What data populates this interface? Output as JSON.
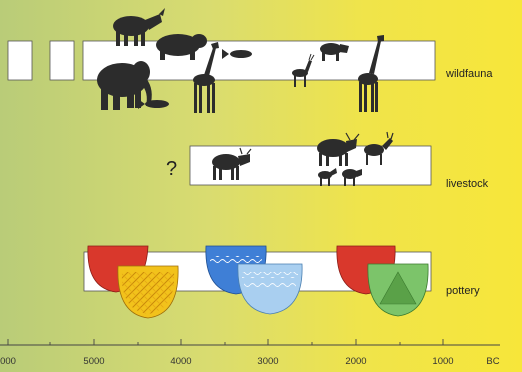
{
  "rows": {
    "wildfauna": {
      "label": "wildfauna"
    },
    "livestock": {
      "label": "livestock",
      "uncertain_mark": "?"
    },
    "pottery": {
      "label": "pottery"
    }
  },
  "axis": {
    "ticks": [
      "000",
      "5000",
      "4000",
      "3000",
      "2000",
      "1000",
      "BC"
    ]
  },
  "icons": {
    "wildfauna": [
      "rhino-icon",
      "hippo-icon",
      "elephant-icon",
      "giraffe-icon",
      "fish-icon",
      "antelope-icon",
      "buffalo-icon"
    ],
    "livestock": [
      "cattle-icon",
      "goat-icon",
      "sheep-icon"
    ],
    "pottery": [
      "red-pot-icon",
      "yellow-pot-icon",
      "blue-pot-icon",
      "light-blue-pot-icon",
      "green-pot-icon"
    ]
  },
  "colors": {
    "pot_red": "#d9382c",
    "pot_yellow": "#f2c21b",
    "pot_blue": "#3f7fd6",
    "pot_lightblue": "#a9cff0",
    "pot_green": "#7cc46a",
    "silhouette": "#2c2c2c"
  }
}
